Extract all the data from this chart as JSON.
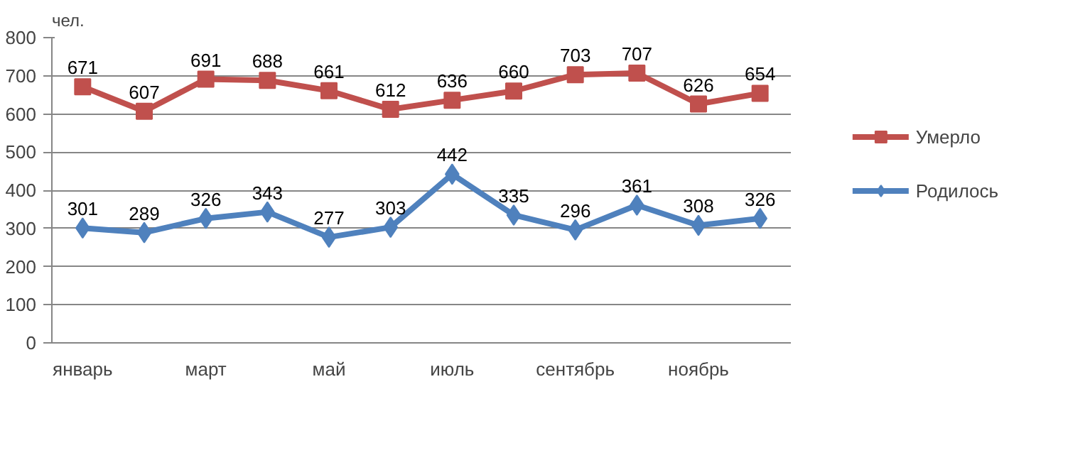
{
  "chart_data": {
    "type": "line",
    "ylabel": "чел.",
    "categories": [
      "январь",
      null,
      "март",
      null,
      "май",
      null,
      "июль",
      null,
      "сентябрь",
      null,
      "ноябрь",
      null
    ],
    "series": [
      {
        "name": "Умерло",
        "color": "#c0504d",
        "marker": "square",
        "values": [
          671,
          607,
          691,
          688,
          661,
          612,
          636,
          660,
          703,
          707,
          626,
          654
        ]
      },
      {
        "name": "Родилось",
        "color": "#4f81bd",
        "marker": "diamond",
        "values": [
          301,
          289,
          326,
          343,
          277,
          303,
          442,
          335,
          296,
          361,
          308,
          326
        ]
      }
    ],
    "ylim": [
      0,
      800
    ],
    "yticks": [
      0,
      100,
      200,
      300,
      400,
      500,
      600,
      700,
      800
    ],
    "grid": "y",
    "legend": "right",
    "data_labels": true
  }
}
